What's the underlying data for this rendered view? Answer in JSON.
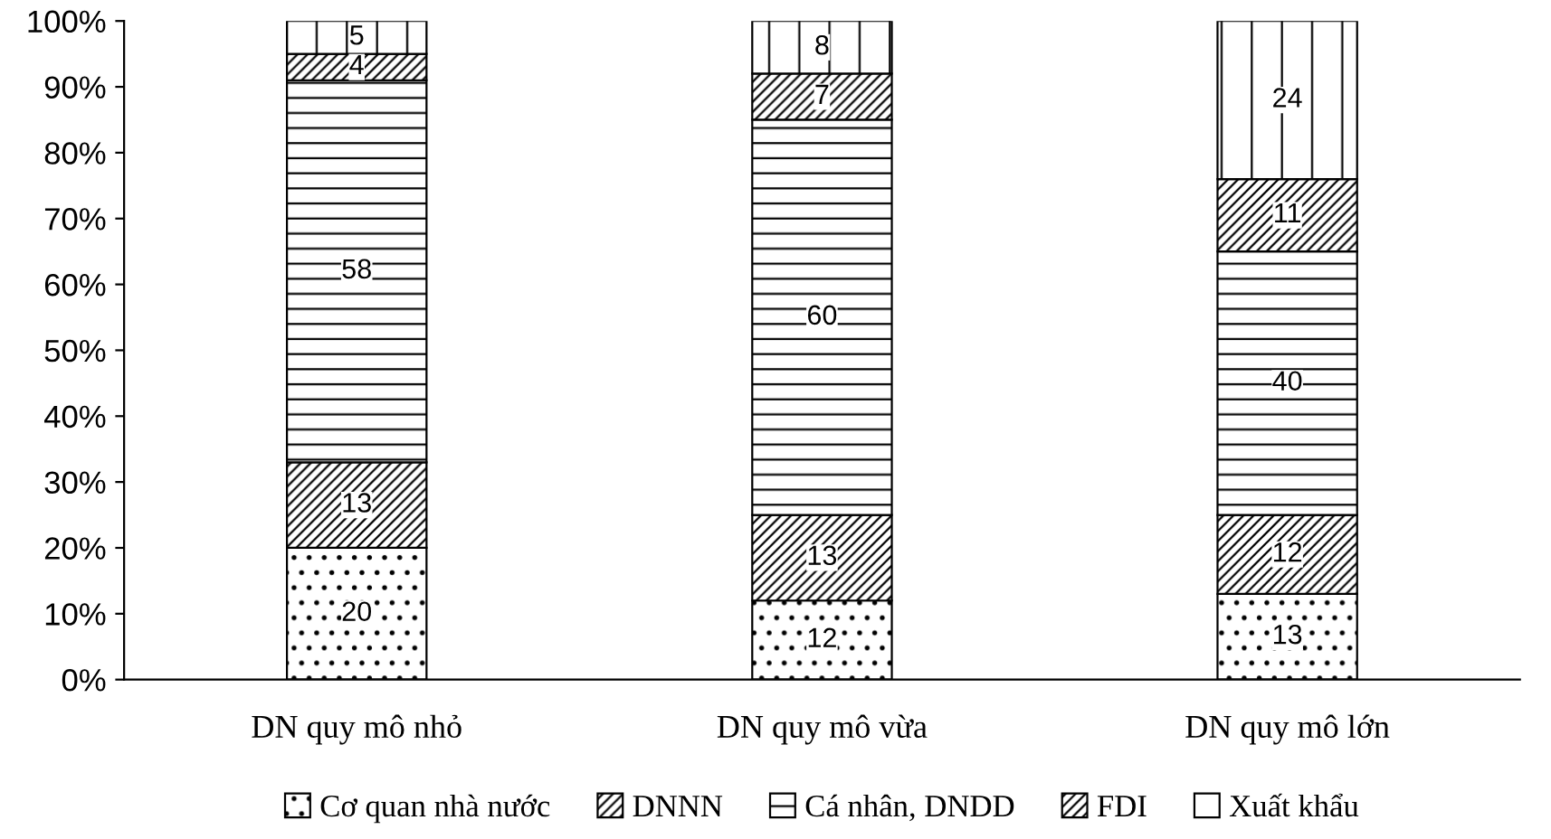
{
  "chart_data": {
    "type": "bar",
    "stacked": true,
    "categories": [
      "DN quy mô nhỏ",
      "DN quy mô vừa",
      "DN quy mô lớn"
    ],
    "series": [
      {
        "name": "Cơ quan nhà nước",
        "color": "#000000",
        "values": [
          20,
          12,
          13
        ]
      },
      {
        "name": "DNNN",
        "color": "#000000",
        "values": [
          13,
          13,
          12
        ]
      },
      {
        "name": "Cá nhân, DNDD",
        "color": "#000000",
        "values": [
          58,
          60,
          40
        ]
      },
      {
        "name": "FDI",
        "color": "#000000",
        "values": [
          4,
          7,
          11
        ]
      },
      {
        "name": "Xuất khẩu",
        "color": "#000000",
        "values": [
          5,
          8,
          24
        ]
      }
    ],
    "ylim": [
      0,
      100
    ],
    "yticks": [
      {
        "value": 0,
        "label": "0%"
      },
      {
        "value": 10,
        "label": "10%"
      },
      {
        "value": 20,
        "label": "20%"
      },
      {
        "value": 30,
        "label": "30%"
      },
      {
        "value": 40,
        "label": "40%"
      },
      {
        "value": 50,
        "label": "50%"
      },
      {
        "value": 60,
        "label": "60%"
      },
      {
        "value": 70,
        "label": "70%"
      },
      {
        "value": 80,
        "label": "80%"
      },
      {
        "value": 90,
        "label": "90%"
      },
      {
        "value": 100,
        "label": "100%"
      }
    ],
    "data_labels": true,
    "grid": false,
    "legend": "bottom"
  }
}
